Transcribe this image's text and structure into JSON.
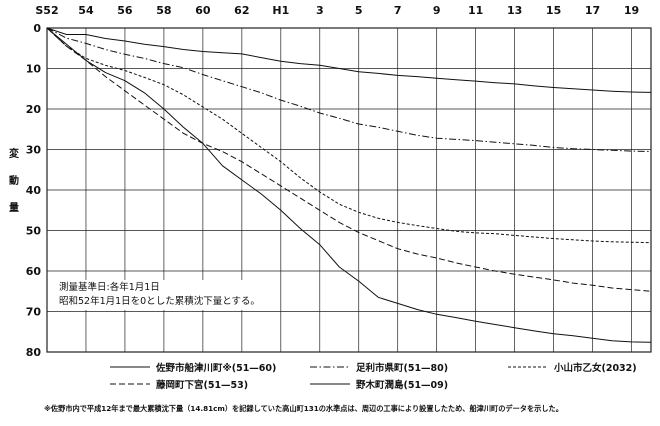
{
  "chart_data": {
    "type": "line",
    "x_ticks": [
      "S52",
      "54",
      "56",
      "58",
      "60",
      "62",
      "H1",
      "3",
      "5",
      "7",
      "9",
      "11",
      "13",
      "15",
      "17",
      "19"
    ],
    "y_ticks": [
      "0",
      "10",
      "20",
      "30",
      "40",
      "50",
      "60",
      "70",
      "80"
    ],
    "ylabel": "変動量",
    "ylim": [
      0,
      80
    ],
    "xlim": [
      0,
      31
    ],
    "grid": true,
    "series": [
      {
        "name": "佐野市船津川町※(51—60)",
        "style": "solid",
        "x": [
          0,
          1,
          2,
          3,
          4,
          5,
          6,
          7,
          8,
          9,
          10,
          11,
          12,
          13,
          14,
          15,
          16,
          17,
          18,
          19,
          20,
          21,
          22,
          23,
          24,
          25,
          26,
          27,
          28,
          29,
          30,
          31
        ],
        "values": [
          0,
          1.6,
          1.6,
          2.6,
          3.2,
          4,
          4.6,
          5.3,
          5.8,
          6.1,
          6.4,
          7.3,
          8.2,
          8.8,
          9.2,
          10,
          10.8,
          11.2,
          11.7,
          12,
          12.4,
          12.8,
          13.1,
          13.5,
          13.8,
          14.3,
          14.7,
          15,
          15.3,
          15.6,
          15.8,
          15.9
        ]
      },
      {
        "name": "足利市県町(51—80)",
        "style": "dashdot",
        "x": [
          0,
          1,
          2,
          3,
          4,
          5,
          6,
          7,
          8,
          9,
          10,
          11,
          12,
          13,
          14,
          15,
          16,
          17,
          18,
          19,
          20,
          21,
          22,
          23,
          24,
          25,
          26,
          27,
          28,
          29,
          30,
          31
        ],
        "values": [
          0,
          2.5,
          3.8,
          5.3,
          6.5,
          7.5,
          8.8,
          9.8,
          11.5,
          13,
          14.5,
          16,
          17.8,
          19.3,
          21,
          22.3,
          23.7,
          24.5,
          25.5,
          26.5,
          27.2,
          27.5,
          27.8,
          28.2,
          28.6,
          29,
          29.5,
          29.8,
          30,
          30.2,
          30.4,
          30.5
        ]
      },
      {
        "name": "小山市乙女(2032)",
        "style": "dashed",
        "x": [
          0,
          1,
          2,
          3,
          4,
          5,
          6,
          7,
          8,
          9,
          10,
          11,
          12,
          13,
          14,
          15,
          16,
          17,
          18,
          19,
          20,
          21,
          22,
          23,
          24,
          25,
          26,
          27,
          28,
          29,
          30,
          31
        ],
        "values": [
          0,
          4.5,
          7.5,
          9.2,
          10.5,
          12.2,
          14,
          16.5,
          19.5,
          22.5,
          26,
          29.5,
          33,
          37,
          40.5,
          43.5,
          45.5,
          47,
          48,
          48.8,
          49.5,
          50.2,
          50.6,
          50.8,
          51.2,
          51.6,
          52,
          52.3,
          52.6,
          52.8,
          52.9,
          53
        ]
      },
      {
        "name": "藤岡町下宮(51—53)",
        "style": "longdash",
        "x": [
          0,
          1,
          2,
          3,
          4,
          5,
          6,
          7,
          8,
          9,
          10,
          11,
          12,
          13,
          14,
          15,
          16,
          17,
          18,
          19,
          20,
          21,
          22,
          23,
          24,
          25,
          26,
          27,
          28,
          29,
          30,
          31
        ],
        "values": [
          0,
          4.5,
          8,
          12,
          15.5,
          19,
          22.5,
          26,
          28.5,
          30.5,
          33,
          36,
          39,
          42,
          45,
          48,
          50.5,
          52.5,
          54.5,
          55.8,
          56.8,
          58,
          59,
          60,
          60.8,
          61.5,
          62.2,
          63,
          63.5,
          64.2,
          64.6,
          65
        ]
      },
      {
        "name": "野木町潤島(51—09)",
        "style": "solid",
        "x": [
          0,
          1,
          2,
          3,
          4,
          5,
          6,
          7,
          8,
          9,
          10,
          11,
          12,
          13,
          14,
          15,
          16,
          17,
          18,
          19,
          20,
          21,
          22,
          23,
          24,
          25,
          26,
          27,
          28,
          29,
          30,
          31
        ],
        "values": [
          0,
          4,
          8,
          11,
          13,
          16,
          20,
          24.5,
          28.5,
          34,
          37.5,
          41,
          45,
          49.5,
          53.5,
          59,
          62.5,
          66.5,
          68,
          69.5,
          70.7,
          71.5,
          72.4,
          73.2,
          74,
          74.8,
          75.5,
          76,
          76.6,
          77.2,
          77.5,
          77.6
        ]
      }
    ]
  },
  "annotation": {
    "line1": "測量基準日:各年1月1日",
    "line2": "昭和52年1月1日を0とした累積沈下量とする。"
  },
  "footnote": "※佐野市内で平成12年まで最大累積沈下量（14.81cm）を記録していた高山町131の水準点は、周辺の工事により設置したため、船津川町のデータを示した。"
}
